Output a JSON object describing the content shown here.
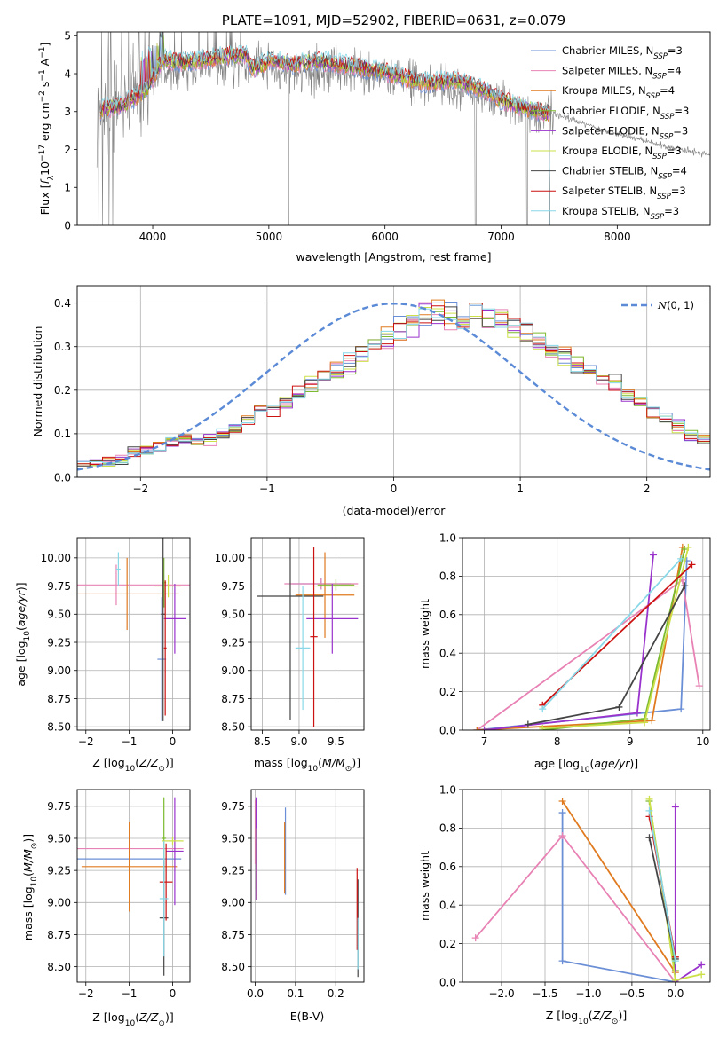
{
  "colors": {
    "Chabrier MILES": "#6b8fd6",
    "Salpeter MILES": "#e882b4",
    "Kroupa MILES": "#e07a1f",
    "Chabrier ELODIE": "#7cba2f",
    "Salpeter ELODIE": "#9933cc",
    "Kroupa ELODIE": "#cde04a",
    "Chabrier STELIB": "#444444",
    "Salpeter STELIB": "#cc1111",
    "Kroupa STELIB": "#88d8e8",
    "data": "#808080",
    "normal": "#5b8ad6",
    "grid": "#b0b0b0"
  },
  "chart_data": [
    {
      "id": "spectrum",
      "type": "line",
      "title": "PLATE=1091, MJD=52902, FIBERID=0631, z=0.079",
      "xlabel": "wavelength [Angstrom, rest frame]",
      "ylabel": "Flux [f_λ 10^-17 erg cm^-2 s^-1 A^-1]",
      "xlim": [
        3350,
        8800
      ],
      "ylim": [
        0,
        5.1
      ],
      "xticks": [
        4000,
        5000,
        6000,
        7000,
        8000
      ],
      "yticks": [
        0,
        1,
        2,
        3,
        4,
        5
      ],
      "grid": false,
      "legend_position": "top-right",
      "legend": [
        {
          "label": "Chabrier MILES, N_SSP=3"
        },
        {
          "label": "Salpeter MILES, N_SSP=4"
        },
        {
          "label": "Kroupa MILES, N_SSP=4"
        },
        {
          "label": "Chabrier ELODIE, N_SSP=3"
        },
        {
          "label": "Salpeter ELODIE, N_SSP=3"
        },
        {
          "label": "Kroupa ELODIE, N_SSP=3"
        },
        {
          "label": "Chabrier STELIB, N_SSP=4"
        },
        {
          "label": "Salpeter STELIB, N_SSP=3"
        },
        {
          "label": "Kroupa STELIB, N_SSP=3"
        }
      ],
      "model_continuum": [
        [
          3550,
          3.05
        ],
        [
          3650,
          3.1
        ],
        [
          3750,
          3.15
        ],
        [
          3800,
          3.3
        ],
        [
          3850,
          3.35
        ],
        [
          3900,
          3.5
        ],
        [
          3950,
          3.6
        ],
        [
          4000,
          3.9
        ],
        [
          4100,
          4.4
        ],
        [
          4200,
          4.3
        ],
        [
          4400,
          4.35
        ],
        [
          4600,
          4.45
        ],
        [
          4800,
          4.5
        ],
        [
          4861,
          4.1
        ],
        [
          5000,
          4.35
        ],
        [
          5200,
          4.25
        ],
        [
          5400,
          4.35
        ],
        [
          5600,
          4.25
        ],
        [
          5800,
          4.15
        ],
        [
          6000,
          4.05
        ],
        [
          6200,
          3.85
        ],
        [
          6400,
          3.75
        ],
        [
          6563,
          3.85
        ],
        [
          6700,
          3.75
        ],
        [
          6900,
          3.5
        ],
        [
          7000,
          3.3
        ],
        [
          7200,
          3.1
        ],
        [
          7400,
          2.95
        ]
      ],
      "data_continuum": [
        [
          3520,
          3.0
        ],
        [
          3600,
          3.2
        ],
        [
          3800,
          3.3
        ],
        [
          4000,
          3.9
        ],
        [
          4200,
          4.1
        ],
        [
          4500,
          4.2
        ],
        [
          4850,
          4.3
        ],
        [
          5200,
          4.0
        ],
        [
          5600,
          4.1
        ],
        [
          6000,
          3.9
        ],
        [
          6400,
          3.7
        ],
        [
          6800,
          3.4
        ],
        [
          7200,
          3.1
        ],
        [
          7500,
          2.9
        ],
        [
          8000,
          2.4
        ],
        [
          8400,
          2.1
        ],
        [
          8800,
          1.85
        ]
      ]
    },
    {
      "id": "residuals",
      "type": "histogram",
      "xlabel": "(data-model)/error",
      "ylabel": "Normed distribution",
      "xlim": [
        -2.5,
        2.5
      ],
      "ylim": [
        0,
        0.44
      ],
      "xticks": [
        -2,
        -1,
        0,
        1,
        2
      ],
      "yticks": [
        0.0,
        0.1,
        0.2,
        0.3,
        0.4
      ],
      "grid": true,
      "legend_position": "top-right",
      "reference_curve": {
        "label": "N(0, 1)",
        "mean": 0,
        "sigma": 1
      },
      "bins": {
        "start": -2.5,
        "width": 0.1,
        "count": 50
      },
      "base_histogram": [
        0.03,
        0.033,
        0.036,
        0.04,
        0.058,
        0.063,
        0.073,
        0.082,
        0.085,
        0.08,
        0.088,
        0.097,
        0.112,
        0.128,
        0.15,
        0.16,
        0.172,
        0.19,
        0.212,
        0.232,
        0.245,
        0.262,
        0.282,
        0.3,
        0.318,
        0.337,
        0.355,
        0.372,
        0.38,
        0.365,
        0.372,
        0.38,
        0.365,
        0.355,
        0.342,
        0.332,
        0.312,
        0.302,
        0.282,
        0.262,
        0.247,
        0.232,
        0.212,
        0.19,
        0.172,
        0.15,
        0.13,
        0.115,
        0.095,
        0.088
      ]
    },
    {
      "id": "age-vs-Z",
      "type": "errorbar",
      "xlabel": "Z [log10(Z/Z_sun)]",
      "ylabel": "age  [log10(age/yr)]",
      "xlim": [
        -2.2,
        0.4
      ],
      "ylim": [
        8.47,
        10.18
      ],
      "xticks": [
        -2,
        -1,
        0
      ],
      "yticks": [
        8.5,
        8.75,
        9.0,
        9.25,
        9.5,
        9.75,
        10.0
      ],
      "grid": true,
      "points": [
        {
          "model": "Chabrier MILES",
          "x": -0.25,
          "xerr": 0.1,
          "y": 9.1,
          "yerr": 0.55
        },
        {
          "model": "Salpeter MILES",
          "x": -1.3,
          "xerr": 1.8,
          "y": 9.76,
          "yerr": 0.18
        },
        {
          "model": "Kroupa MILES",
          "x": -1.05,
          "xerr": 1.2,
          "y": 9.68,
          "yerr": 0.32
        },
        {
          "model": "Chabrier ELODIE",
          "x": -0.2,
          "xerr": 0.05,
          "y": 9.78,
          "yerr": 0.22
        },
        {
          "model": "Salpeter ELODIE",
          "x": 0.05,
          "xerr": 0.25,
          "y": 9.46,
          "yerr": 0.31
        },
        {
          "model": "Kroupa ELODIE",
          "x": -0.1,
          "xerr": 0.3,
          "y": 9.75,
          "yerr": 0.1
        },
        {
          "model": "Chabrier STELIB",
          "x": -0.22,
          "xerr": 0.05,
          "y": 9.5,
          "yerr": 0.95
        },
        {
          "model": "Salpeter STELIB",
          "x": -0.17,
          "xerr": 0.03,
          "y": 9.2,
          "yerr": 0.6
        },
        {
          "model": "Kroupa STELIB",
          "x": -1.25,
          "xerr": 0.05,
          "y": 9.9,
          "yerr": 0.15
        }
      ]
    },
    {
      "id": "age-vs-mass",
      "type": "errorbar",
      "xlabel": "mass [log10(M/M_sun)]",
      "ylabel": "",
      "xlim": [
        8.35,
        9.88
      ],
      "ylim": [
        8.47,
        10.18
      ],
      "xticks": [
        8.5,
        9.0,
        9.5
      ],
      "yticks": [
        8.5,
        8.75,
        9.0,
        9.25,
        9.5,
        9.75,
        10.0
      ],
      "grid": true,
      "points": [
        {
          "model": "Chabrier MILES",
          "x": 9.3,
          "xerr": 0.4,
          "y": 9.77,
          "yerr": 0.05
        },
        {
          "model": "Salpeter MILES",
          "x": 9.3,
          "xerr": 0.5,
          "y": 9.77,
          "yerr": 0.05
        },
        {
          "model": "Kroupa MILES",
          "x": 9.35,
          "xerr": 0.4,
          "y": 9.67,
          "yerr": 0.38
        },
        {
          "model": "Chabrier ELODIE",
          "x": 9.5,
          "xerr": 0.25,
          "y": 9.76,
          "yerr": 0.05
        },
        {
          "model": "Salpeter ELODIE",
          "x": 9.45,
          "xerr": 0.35,
          "y": 9.46,
          "yerr": 0.31
        },
        {
          "model": "Kroupa ELODIE",
          "x": 9.5,
          "xerr": 0.3,
          "y": 9.75,
          "yerr": 0.04
        },
        {
          "model": "Chabrier STELIB",
          "x": 8.88,
          "xerr": 0.45,
          "y": 9.66,
          "yerr": 1.1
        },
        {
          "model": "Salpeter STELIB",
          "x": 9.2,
          "xerr": 0.05,
          "y": 9.3,
          "yerr": 0.8
        },
        {
          "model": "Kroupa STELIB",
          "x": 9.05,
          "xerr": 0.1,
          "y": 9.2,
          "yerr": 0.55
        }
      ]
    },
    {
      "id": "massweight-vs-age",
      "type": "line",
      "xlabel": "age  [log10(age/yr)]",
      "ylabel": "mass weight",
      "xlim": [
        6.7,
        10.1
      ],
      "ylim": [
        0,
        1
      ],
      "xticks": [
        7,
        8,
        9,
        10
      ],
      "yticks": [
        0.0,
        0.2,
        0.4,
        0.6,
        0.8,
        1.0
      ],
      "grid": true,
      "series": [
        {
          "model": "Chabrier MILES",
          "points": [
            [
              6.9,
              0.0
            ],
            [
              9.7,
              0.11
            ],
            [
              9.78,
              0.88
            ]
          ]
        },
        {
          "model": "Salpeter MILES",
          "points": [
            [
              6.9,
              0.0
            ],
            [
              9.72,
              0.78
            ],
            [
              9.95,
              0.23
            ]
          ]
        },
        {
          "model": "Kroupa MILES",
          "points": [
            [
              6.9,
              0.0
            ],
            [
              9.3,
              0.05
            ],
            [
              9.72,
              0.95
            ]
          ]
        },
        {
          "model": "Chabrier ELODIE",
          "points": [
            [
              7.8,
              0.0
            ],
            [
              9.2,
              0.06
            ],
            [
              9.75,
              0.94
            ]
          ]
        },
        {
          "model": "Salpeter ELODIE",
          "points": [
            [
              7.0,
              0.0
            ],
            [
              9.1,
              0.09
            ],
            [
              9.32,
              0.91
            ]
          ]
        },
        {
          "model": "Kroupa ELODIE",
          "points": [
            [
              7.8,
              0.01
            ],
            [
              9.2,
              0.04
            ],
            [
              9.8,
              0.95
            ]
          ]
        },
        {
          "model": "Chabrier STELIB",
          "points": [
            [
              7.6,
              0.03
            ],
            [
              8.85,
              0.12
            ],
            [
              9.75,
              0.75
            ]
          ]
        },
        {
          "model": "Salpeter STELIB",
          "points": [
            [
              7.8,
              0.13
            ],
            [
              9.85,
              0.86
            ]
          ]
        },
        {
          "model": "Kroupa STELIB",
          "points": [
            [
              7.8,
              0.11
            ],
            [
              9.7,
              0.89
            ]
          ]
        }
      ]
    },
    {
      "id": "mass-vs-Z",
      "type": "errorbar",
      "xlabel": "Z [log10(Z/Z_sun)]",
      "ylabel": "mass [log10(M/M_sun)]",
      "xlim": [
        -2.2,
        0.4
      ],
      "ylim": [
        8.38,
        9.88
      ],
      "xticks": [
        -2,
        -1,
        0
      ],
      "yticks": [
        8.5,
        8.75,
        9.0,
        9.25,
        9.5,
        9.75
      ],
      "grid": true,
      "points": [
        {
          "model": "Chabrier MILES",
          "x": -1.0,
          "xerr": 1.2,
          "y": 9.34,
          "yerr": 0.08
        },
        {
          "model": "Salpeter MILES",
          "x": -1.0,
          "xerr": 1.25,
          "y": 9.42,
          "yerr": 0.1
        },
        {
          "model": "Kroupa MILES",
          "x": -1.0,
          "xerr": 1.1,
          "y": 9.28,
          "yerr": 0.35
        },
        {
          "model": "Chabrier ELODIE",
          "x": -0.2,
          "xerr": 0.05,
          "y": 9.5,
          "yerr": 0.32
        },
        {
          "model": "Salpeter ELODIE",
          "x": 0.05,
          "xerr": 0.2,
          "y": 9.4,
          "yerr": 0.42
        },
        {
          "model": "Kroupa ELODIE",
          "x": 0.0,
          "xerr": 0.25,
          "y": 9.48,
          "yerr": 0.03
        },
        {
          "model": "Chabrier STELIB",
          "x": -0.2,
          "xerr": 0.1,
          "y": 8.88,
          "yerr": 0.45
        },
        {
          "model": "Salpeter STELIB",
          "x": -0.15,
          "xerr": 0.15,
          "y": 9.16,
          "yerr": 0.3
        },
        {
          "model": "Kroupa STELIB",
          "x": -0.2,
          "xerr": 0.1,
          "y": 9.03,
          "yerr": 0.45
        }
      ]
    },
    {
      "id": "mass-vs-EBV",
      "type": "errorbar",
      "xlabel": "E(B-V)",
      "ylabel": "",
      "xlim": [
        -0.01,
        0.27
      ],
      "ylim": [
        8.38,
        9.88
      ],
      "xticks": [
        0.0,
        0.1,
        0.2
      ],
      "yticks": [
        8.5,
        8.75,
        9.0,
        9.25,
        9.5,
        9.75
      ],
      "grid": true,
      "points": [
        {
          "model": "Chabrier MILES",
          "x": 0.075,
          "xerr": 0,
          "y": 9.4,
          "yerr": 0.34
        },
        {
          "model": "Salpeter MILES",
          "x": 0.0,
          "xerr": 0,
          "y": 9.55,
          "yerr": 0.25
        },
        {
          "model": "Kroupa MILES",
          "x": 0.073,
          "xerr": 0,
          "y": 9.35,
          "yerr": 0.28
        },
        {
          "model": "Chabrier ELODIE",
          "x": 0.002,
          "xerr": 0,
          "y": 9.45,
          "yerr": 0.35
        },
        {
          "model": "Salpeter ELODIE",
          "x": 0.002,
          "xerr": 0,
          "y": 9.42,
          "yerr": 0.4
        },
        {
          "model": "Kroupa ELODIE",
          "x": 0.004,
          "xerr": 0,
          "y": 9.3,
          "yerr": 0.28
        },
        {
          "model": "Chabrier STELIB",
          "x": 0.255,
          "xerr": 0,
          "y": 8.8,
          "yerr": 0.38
        },
        {
          "model": "Salpeter STELIB",
          "x": 0.253,
          "xerr": 0,
          "y": 8.95,
          "yerr": 0.32
        },
        {
          "model": "Kroupa STELIB",
          "x": 0.255,
          "xerr": 0,
          "y": 8.68,
          "yerr": 0.2
        }
      ]
    },
    {
      "id": "massweight-vs-Z",
      "type": "line",
      "xlabel": "Z [log10(Z/Z_sun)]",
      "ylabel": "mass weight",
      "xlim": [
        -2.45,
        0.4
      ],
      "ylim": [
        0,
        1
      ],
      "xticks": [
        -2.0,
        -1.5,
        -1.0,
        -0.5,
        0.0
      ],
      "yticks": [
        0.0,
        0.2,
        0.4,
        0.6,
        0.8,
        1.0
      ],
      "grid": true,
      "series": [
        {
          "model": "Chabrier MILES",
          "points": [
            [
              -1.3,
              0.88
            ],
            [
              -1.3,
              0.11
            ],
            [
              0.0,
              0.0
            ]
          ]
        },
        {
          "model": "Salpeter MILES",
          "points": [
            [
              -2.3,
              0.23
            ],
            [
              -1.3,
              0.76
            ],
            [
              0.0,
              0.0
            ]
          ]
        },
        {
          "model": "Kroupa MILES",
          "points": [
            [
              -1.3,
              0.94
            ],
            [
              0.0,
              0.05
            ]
          ]
        },
        {
          "model": "Chabrier ELODIE",
          "points": [
            [
              -0.3,
              0.94
            ],
            [
              0.0,
              0.06
            ]
          ]
        },
        {
          "model": "Salpeter ELODIE",
          "points": [
            [
              0.0,
              0.91
            ],
            [
              0.0,
              0.0
            ],
            [
              0.3,
              0.09
            ]
          ]
        },
        {
          "model": "Kroupa ELODIE",
          "points": [
            [
              -0.3,
              0.95
            ],
            [
              0.0,
              0.01
            ],
            [
              0.3,
              0.04
            ]
          ]
        },
        {
          "model": "Chabrier STELIB",
          "points": [
            [
              -0.3,
              0.75
            ],
            [
              0.0,
              0.12
            ]
          ]
        },
        {
          "model": "Salpeter STELIB",
          "points": [
            [
              -0.3,
              0.86
            ],
            [
              0.0,
              0.13
            ]
          ]
        },
        {
          "model": "Kroupa STELIB",
          "points": [
            [
              -0.3,
              0.89
            ],
            [
              0.0,
              0.11
            ]
          ]
        }
      ]
    }
  ]
}
